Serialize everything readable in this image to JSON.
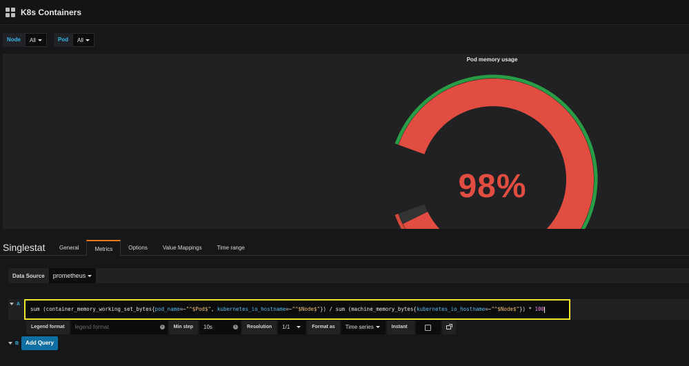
{
  "app": {
    "title": "K8s Containers",
    "icon": "grid-icon"
  },
  "variables": [
    {
      "label": "Node",
      "value": "All"
    },
    {
      "label": "Pod",
      "value": "All"
    }
  ],
  "panel": {
    "title": "Pod memory usage",
    "type": "gauge",
    "value_text": "98%",
    "value": 98,
    "min": 0,
    "max": 100,
    "thresholds": [
      {
        "from": 0,
        "to": 70,
        "color": "#299c46"
      },
      {
        "from": 70,
        "to": 85,
        "color": "#e0752d"
      },
      {
        "from": 85,
        "to": 100,
        "color": "#d44a3a"
      }
    ],
    "value_color": "#e24d42"
  },
  "editor": {
    "title": "Singlestat",
    "tabs": [
      "General",
      "Metrics",
      "Options",
      "Value Mappings",
      "Time range"
    ],
    "active_tab": "Metrics",
    "data_source_label": "Data Source",
    "data_source_value": "prometheus",
    "queries": [
      {
        "ref": "A",
        "tokens": [
          {
            "t": "fn",
            "v": "sum "
          },
          {
            "t": "fn",
            "v": "(container_memory_working_set_bytes{"
          },
          {
            "t": "lbl",
            "v": "pod_name"
          },
          {
            "t": "fn",
            "v": "=~"
          },
          {
            "t": "str",
            "v": "\"^$Pod$\""
          },
          {
            "t": "fn",
            "v": ", "
          },
          {
            "t": "lbl",
            "v": "kubernetes_io_hostname"
          },
          {
            "t": "fn",
            "v": "=~"
          },
          {
            "t": "str",
            "v": "\"^$Node$\""
          },
          {
            "t": "fn",
            "v": "}) / sum (machine_memory_bytes{"
          },
          {
            "t": "lbl",
            "v": "kubernetes_io_hostname"
          },
          {
            "t": "fn",
            "v": "=~"
          },
          {
            "t": "str",
            "v": "\"^$Node$\""
          },
          {
            "t": "fn",
            "v": "}) * "
          },
          {
            "t": "num",
            "v": "100"
          }
        ]
      },
      {
        "ref": "B"
      }
    ],
    "options": {
      "legend_format_label": "Legend format",
      "legend_format_placeholder": "legend format",
      "min_step_label": "Min step",
      "min_step_value": "10s",
      "resolution_label": "Resolution",
      "resolution_value": "1/1",
      "format_as_label": "Format as",
      "format_as_value": "Time series",
      "instant_label": "Instant",
      "info_glyph": "i"
    },
    "add_query_label": "Add Query"
  }
}
